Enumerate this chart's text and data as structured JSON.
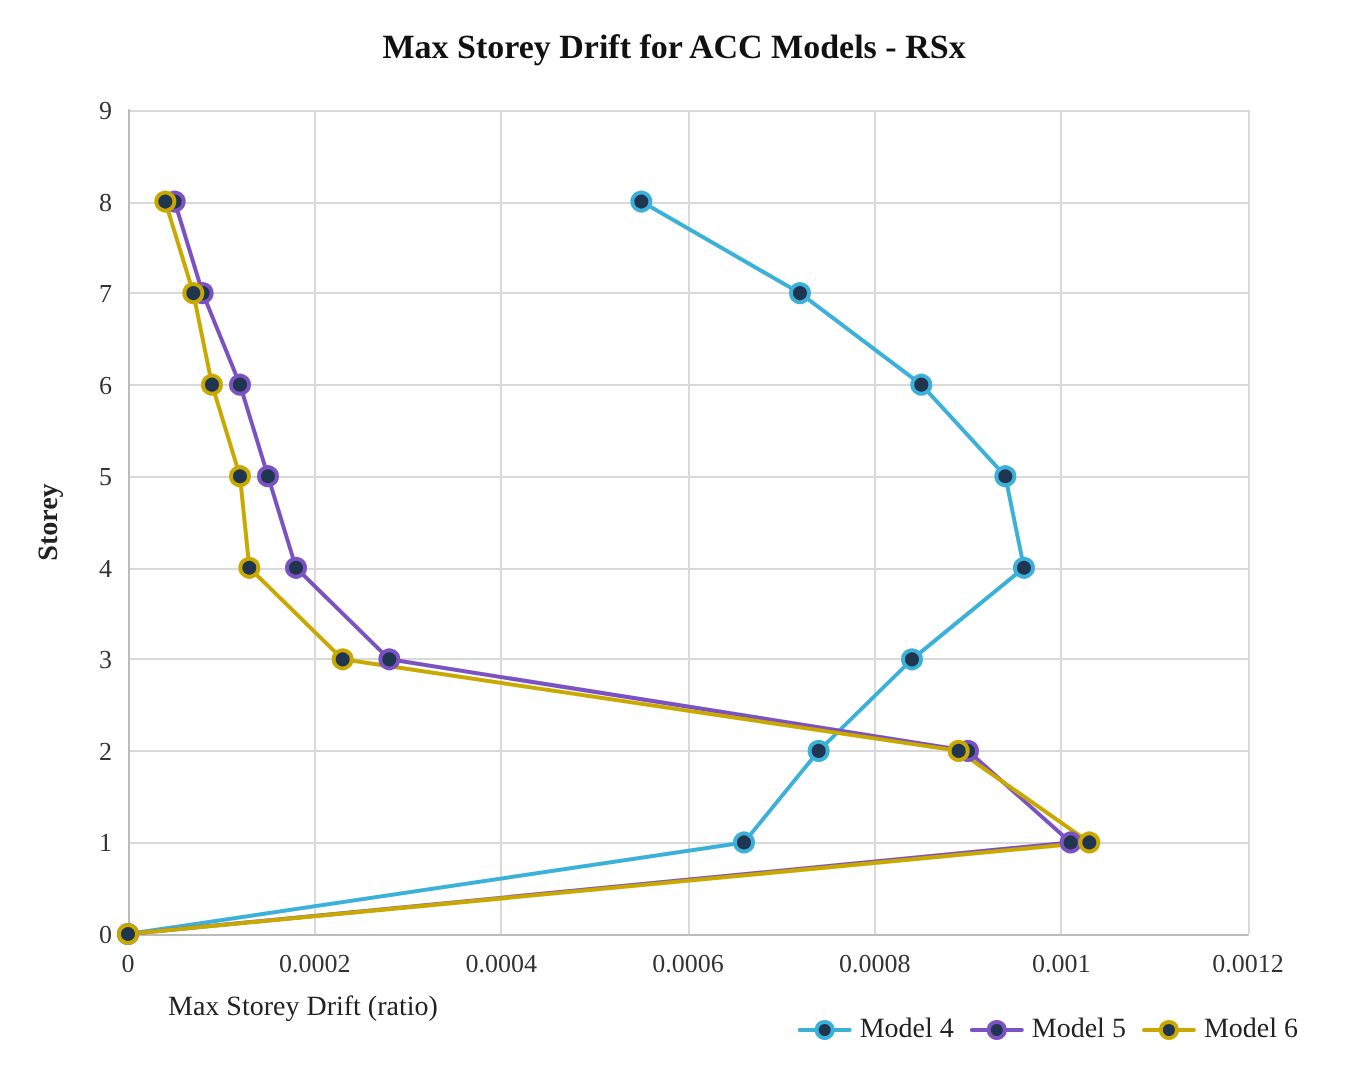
{
  "chart_data": {
    "type": "line",
    "title": "Max Storey Drift for ACC Models - RSx",
    "xlabel": "Max Storey Drift (ratio)",
    "ylabel": "Storey",
    "series": [
      {
        "name": "Model 4",
        "color": "#3bb0d9",
        "x": [
          0,
          0.00066,
          0.00074,
          0.00084,
          0.00096,
          0.00094,
          0.00085,
          0.00072,
          0.00055
        ],
        "values": [
          0,
          1,
          2,
          3,
          4,
          5,
          6,
          7,
          8
        ]
      },
      {
        "name": "Model 5",
        "color": "#7b52c1",
        "x": [
          0,
          0.00101,
          0.0009,
          0.00028,
          0.00018,
          0.00015,
          0.00012,
          8e-05,
          5e-05
        ],
        "values": [
          0,
          1,
          2,
          3,
          4,
          5,
          6,
          7,
          8
        ]
      },
      {
        "name": "Model 6",
        "color": "#c9a800",
        "x": [
          0,
          0.00103,
          0.00089,
          0.00023,
          0.00013,
          0.00012,
          9e-05,
          7e-05,
          4e-05
        ],
        "values": [
          0,
          1,
          2,
          3,
          4,
          5,
          6,
          7,
          8
        ]
      }
    ],
    "xlim": [
      0,
      0.0012
    ],
    "xticks": [
      0,
      0.0002,
      0.0004,
      0.0006,
      0.0008,
      0.001,
      0.0012
    ],
    "ylim": [
      0,
      9
    ],
    "yticks": [
      0,
      1,
      2,
      3,
      4,
      5,
      6,
      7,
      8,
      9
    ],
    "grid": true,
    "legend": "bottom right",
    "marker": "circle",
    "line_style": "solid"
  }
}
